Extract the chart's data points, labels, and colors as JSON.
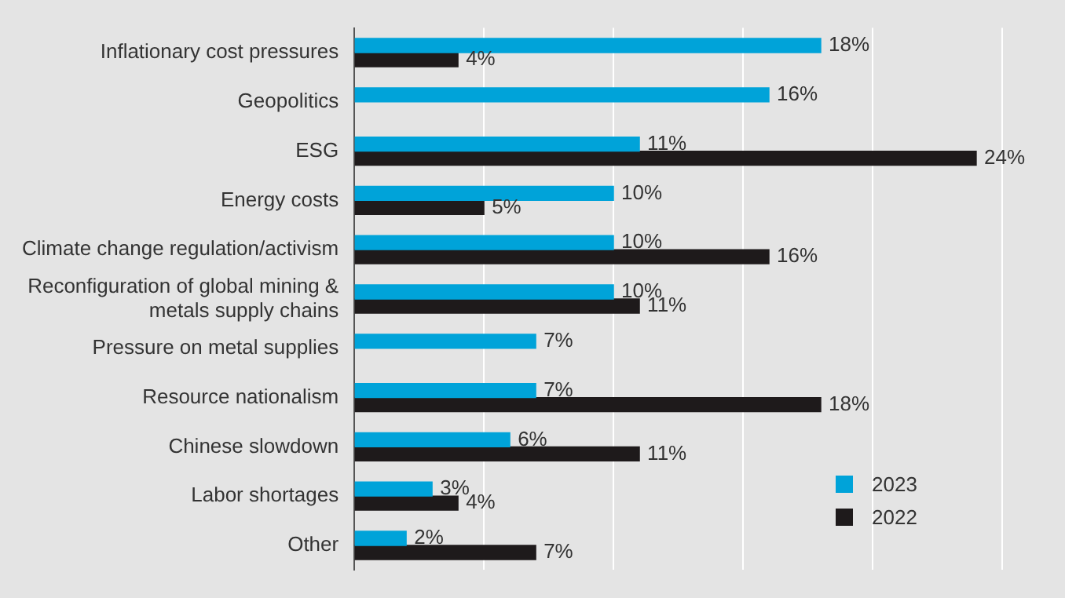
{
  "chart_data": {
    "type": "bar",
    "orientation": "horizontal",
    "categories": [
      "Inflationary cost pressures",
      "Geopolitics",
      "ESG",
      "Energy costs",
      "Climate change regulation/activism",
      "Reconfiguration of global mining & metals supply chains",
      "Pressure on metal supplies",
      "Resource nationalism",
      "Chinese slowdown",
      "Labor shortages",
      "Other"
    ],
    "series": [
      {
        "name": "2023",
        "color": "#00a3d9",
        "values": [
          18,
          16,
          11,
          10,
          10,
          10,
          7,
          7,
          6,
          3,
          2
        ],
        "value_labels": [
          "18%",
          "16%",
          "11%",
          "10%",
          "10%",
          "10%",
          "7%",
          "7%",
          "6%",
          "3%",
          "2%"
        ]
      },
      {
        "name": "2022",
        "color": "#1e1a1b",
        "values": [
          4,
          null,
          24,
          5,
          16,
          11,
          null,
          18,
          11,
          4,
          7
        ],
        "value_labels": [
          "4%",
          null,
          "24%",
          "5%",
          "16%",
          "11%",
          null,
          "18%",
          "11%",
          "4%",
          "7%"
        ]
      }
    ],
    "xticks": [
      {
        "value": 0,
        "label": null
      },
      {
        "value": 5,
        "label": null
      },
      {
        "value": 10,
        "label": null
      },
      {
        "value": 15,
        "label": null
      },
      {
        "value": 20,
        "label": null
      },
      {
        "value": 25,
        "label": null
      }
    ],
    "grid": "x",
    "legend": "bottom right",
    "tick_labels": "y"
  }
}
